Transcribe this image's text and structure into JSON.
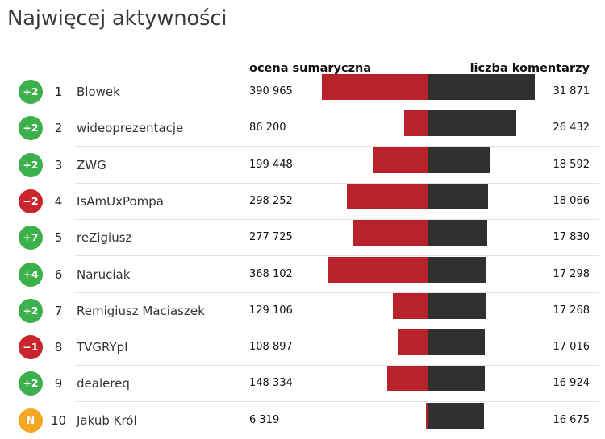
{
  "chart_data": {
    "type": "bar",
    "title": "Najwięcej aktywności",
    "score_label": "ocena sumaryczna",
    "comments_label": "liczba komentarzy",
    "score_max": 390965,
    "comments_max": 31871,
    "rows": [
      {
        "badge": "+2",
        "badge_color": "#3cb04a",
        "rank": "1",
        "name": "Blowek",
        "score": 390965,
        "score_text": "390 965",
        "comments": 31871,
        "comments_text": "31 871"
      },
      {
        "badge": "+2",
        "badge_color": "#3cb04a",
        "rank": "2",
        "name": "wideoprezentacje",
        "score": 86200,
        "score_text": "86 200",
        "comments": 26432,
        "comments_text": "26 432"
      },
      {
        "badge": "+2",
        "badge_color": "#3cb04a",
        "rank": "3",
        "name": "ZWG",
        "score": 199448,
        "score_text": "199 448",
        "comments": 18592,
        "comments_text": "18 592"
      },
      {
        "badge": "−2",
        "badge_color": "#c8252c",
        "rank": "4",
        "name": "IsAmUxPompa",
        "score": 298252,
        "score_text": "298 252",
        "comments": 18066,
        "comments_text": "18 066"
      },
      {
        "badge": "+7",
        "badge_color": "#3cb04a",
        "rank": "5",
        "name": "reZigiusz",
        "score": 277725,
        "score_text": "277 725",
        "comments": 17830,
        "comments_text": "17 830"
      },
      {
        "badge": "+4",
        "badge_color": "#3cb04a",
        "rank": "6",
        "name": "Naruciak",
        "score": 368102,
        "score_text": "368 102",
        "comments": 17298,
        "comments_text": "17 298"
      },
      {
        "badge": "+2",
        "badge_color": "#3cb04a",
        "rank": "7",
        "name": "Remigiusz Maciaszek",
        "score": 129106,
        "score_text": "129 106",
        "comments": 17268,
        "comments_text": "17 268"
      },
      {
        "badge": "−1",
        "badge_color": "#c8252c",
        "rank": "8",
        "name": "TVGRYpl",
        "score": 108897,
        "score_text": "108 897",
        "comments": 17016,
        "comments_text": "17 016"
      },
      {
        "badge": "+2",
        "badge_color": "#3cb04a",
        "rank": "9",
        "name": "dealereq",
        "score": 148334,
        "score_text": "148 334",
        "comments": 16924,
        "comments_text": "16 924"
      },
      {
        "badge": "N",
        "badge_color": "#f5a623",
        "rank": "10",
        "name": "Jakub Król",
        "score": 6319,
        "score_text": "6 319",
        "comments": 16675,
        "comments_text": "16 675"
      }
    ]
  }
}
